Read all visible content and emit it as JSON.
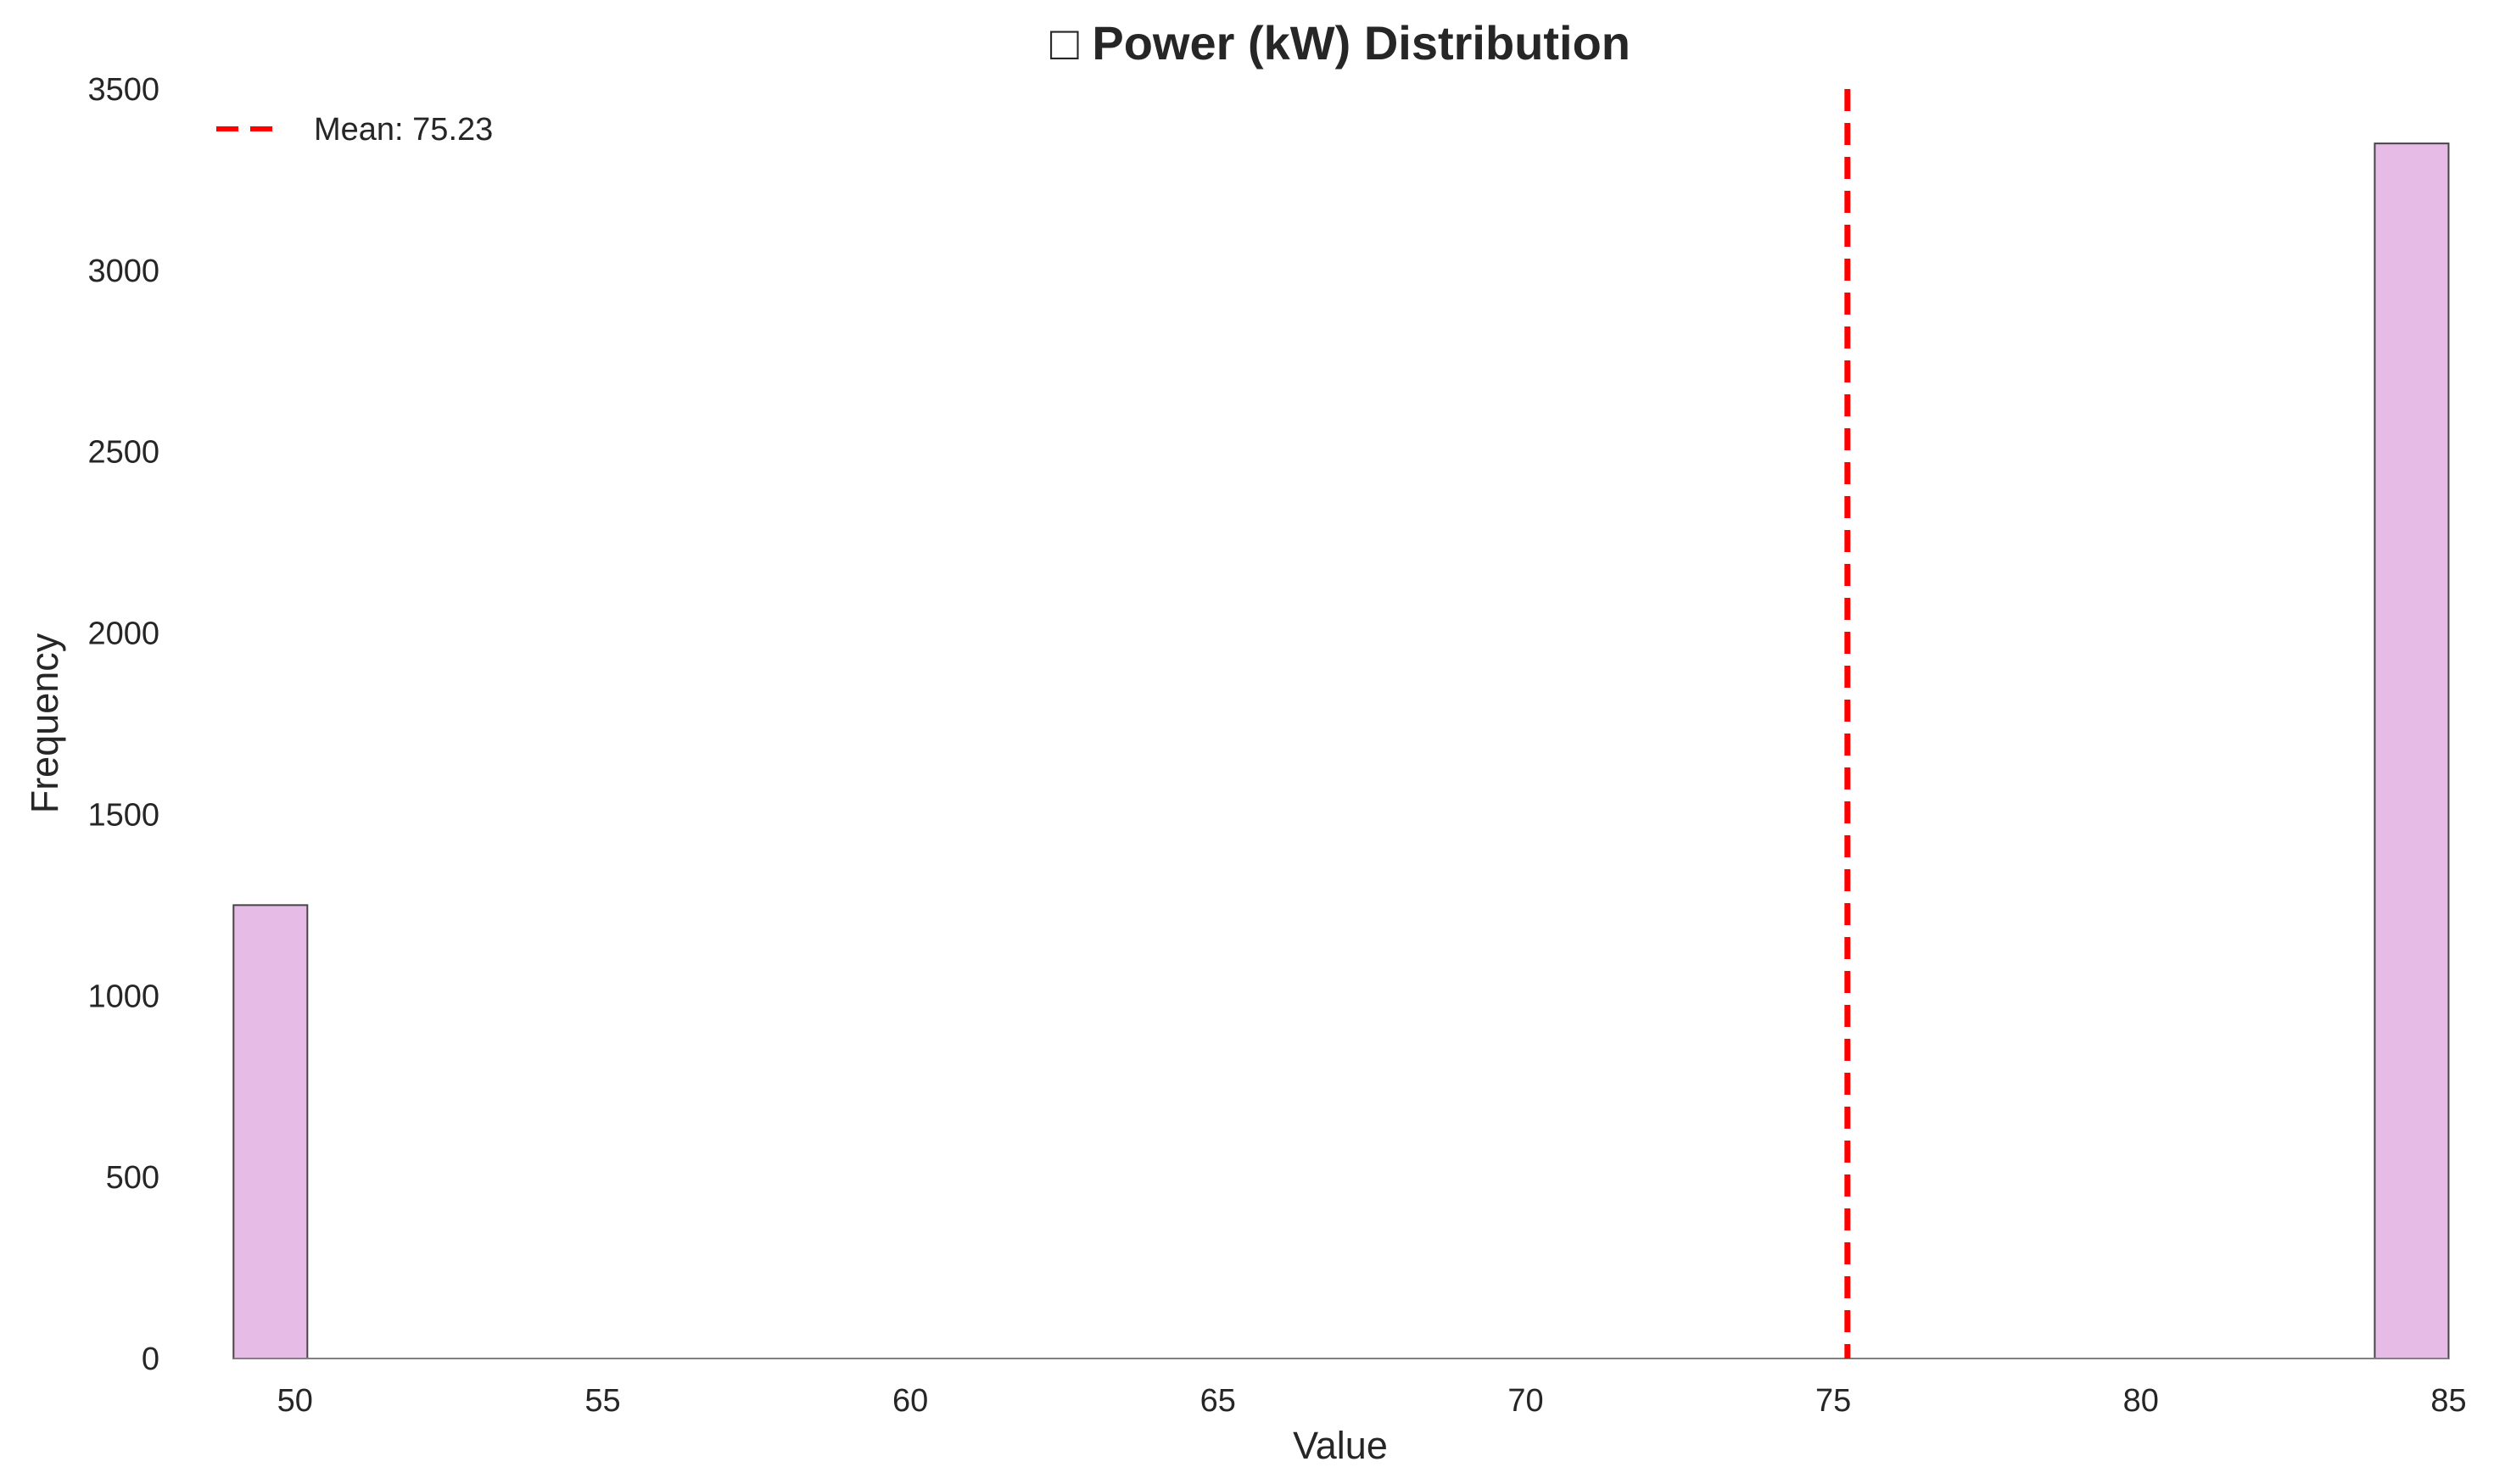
{
  "chart_data": {
    "type": "bar",
    "title": "□ Power (kW) Distribution",
    "xlabel": "Value",
    "ylabel": "Frequency",
    "xlim": [
      48.1,
      85.6
    ],
    "ylim": [
      0,
      3500
    ],
    "xticks": [
      50,
      55,
      60,
      65,
      70,
      75,
      80,
      85
    ],
    "yticks": [
      0,
      500,
      1000,
      1500,
      2000,
      2500,
      3000,
      3500
    ],
    "grid": false,
    "bins": [
      {
        "x0": 49.0,
        "x1": 50.2,
        "count": 1250
      },
      {
        "x0": 83.8,
        "x1": 85.0,
        "count": 3350
      }
    ],
    "mean_line": {
      "value": 75.23,
      "label": "Mean: 75.23",
      "color": "#ff0000"
    },
    "legend": {
      "placement": "top-left",
      "entries": [
        "Mean: 75.23"
      ]
    },
    "colors": {
      "bar_fill": "#e6bce6",
      "bar_edge": "#444444",
      "axis": "#808080",
      "text": "#262626"
    }
  }
}
